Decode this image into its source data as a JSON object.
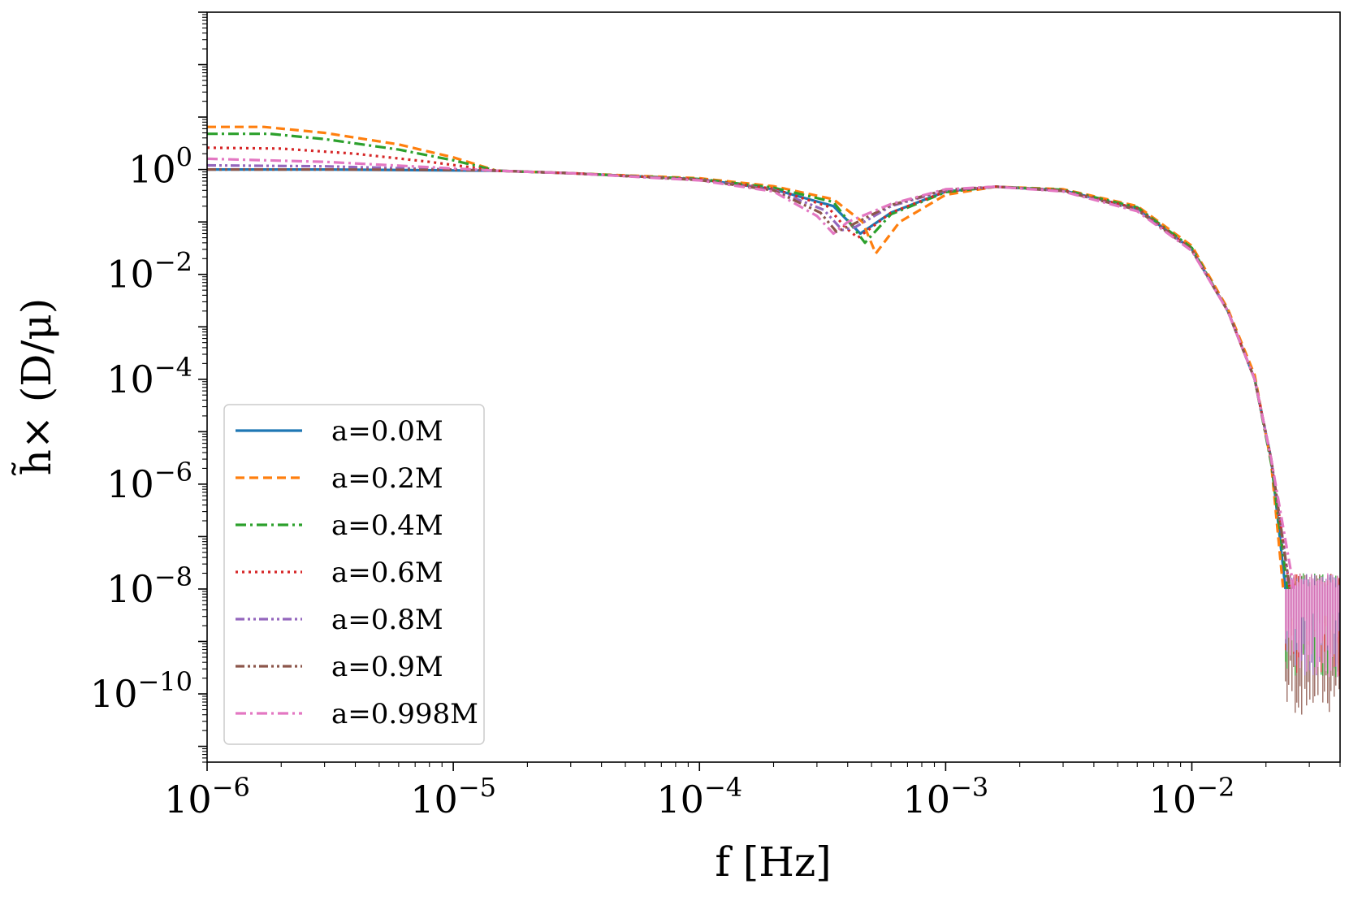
{
  "chart_data": {
    "type": "line",
    "title": "",
    "xlabel": "f [Hz]",
    "ylabel": "h̃× (D/μ)",
    "xscale": "log",
    "yscale": "log",
    "xlim": [
      1e-06,
      0.04
    ],
    "ylim": [
      5e-12,
      1000.0
    ],
    "grid": false,
    "legend_position": "lower-left",
    "x_ticks": [
      {
        "value": 1e-06,
        "base": "10",
        "exp": "−6"
      },
      {
        "value": 1e-05,
        "base": "10",
        "exp": "−5"
      },
      {
        "value": 0.0001,
        "base": "10",
        "exp": "−4"
      },
      {
        "value": 0.001,
        "base": "10",
        "exp": "−3"
      },
      {
        "value": 0.01,
        "base": "10",
        "exp": "−2"
      }
    ],
    "y_ticks": [
      {
        "value": 1,
        "base": "10",
        "exp": "0"
      },
      {
        "value": 0.01,
        "base": "10",
        "exp": "−2"
      },
      {
        "value": 0.0001,
        "base": "10",
        "exp": "−4"
      },
      {
        "value": 1e-06,
        "base": "10",
        "exp": "−6"
      },
      {
        "value": 1e-08,
        "base": "10",
        "exp": "−8"
      },
      {
        "value": 1e-10,
        "base": "10",
        "exp": "−10"
      }
    ],
    "noise_floor": {
      "f_start": 0.024,
      "f_end": 0.04,
      "upper": 2e-08,
      "lower": 5e-11
    },
    "series": [
      {
        "name": "a=0.0M",
        "color": "#1f77b4",
        "dash": "",
        "x": [
          1e-06,
          3e-06,
          1.5e-05,
          3e-05,
          0.0001,
          0.0002,
          0.00035,
          0.00045,
          0.0006,
          0.001,
          0.0016,
          0.003,
          0.006,
          0.01,
          0.014,
          0.018,
          0.021,
          0.024
        ],
        "y": [
          1.0,
          1.0,
          0.95,
          0.85,
          0.65,
          0.42,
          0.2,
          0.06,
          0.15,
          0.38,
          0.47,
          0.4,
          0.18,
          0.03,
          0.002,
          0.0001,
          3e-06,
          1e-08
        ]
      },
      {
        "name": "a=0.2M",
        "color": "#ff7f0e",
        "dash": "11,6",
        "x": [
          1e-06,
          1.7e-06,
          3e-06,
          6e-06,
          1e-05,
          1.5e-05,
          3e-05,
          0.0001,
          0.0002,
          0.00035,
          0.00046,
          0.00052,
          0.00065,
          0.001,
          0.0016,
          0.003,
          0.006,
          0.01,
          0.014,
          0.018,
          0.021,
          0.0235
        ],
        "y": [
          6.5,
          6.5,
          5.0,
          3.0,
          1.7,
          0.95,
          0.85,
          0.68,
          0.48,
          0.27,
          0.1,
          0.025,
          0.1,
          0.33,
          0.47,
          0.42,
          0.2,
          0.035,
          0.0022,
          0.00012,
          2.5e-06,
          1e-08
        ]
      },
      {
        "name": "a=0.4M",
        "color": "#2ca02c",
        "dash": "13,5,3,5",
        "x": [
          1e-06,
          1.8e-06,
          3e-06,
          6e-06,
          1e-05,
          1.5e-05,
          3e-05,
          0.0001,
          0.0002,
          0.00035,
          0.00042,
          0.00047,
          0.0006,
          0.001,
          0.0016,
          0.003,
          0.006,
          0.01,
          0.014,
          0.018,
          0.021,
          0.0245
        ],
        "y": [
          4.8,
          4.8,
          3.8,
          2.4,
          1.5,
          0.95,
          0.85,
          0.66,
          0.45,
          0.24,
          0.08,
          0.04,
          0.14,
          0.37,
          0.47,
          0.41,
          0.19,
          0.032,
          0.002,
          0.0001,
          2.5e-06,
          1e-08
        ]
      },
      {
        "name": "a=0.6M",
        "color": "#d62728",
        "dash": "3,5",
        "x": [
          1e-06,
          2e-06,
          4e-06,
          8e-06,
          1.5e-05,
          3e-05,
          0.0001,
          0.0002,
          0.00033,
          0.00039,
          0.00044,
          0.0006,
          0.001,
          0.0016,
          0.003,
          0.006,
          0.01,
          0.014,
          0.018,
          0.021,
          0.025
        ],
        "y": [
          2.6,
          2.5,
          2.0,
          1.4,
          0.95,
          0.85,
          0.65,
          0.43,
          0.2,
          0.08,
          0.05,
          0.15,
          0.38,
          0.47,
          0.4,
          0.18,
          0.03,
          0.002,
          0.0001,
          3e-06,
          1e-08
        ]
      },
      {
        "name": "a=0.8M",
        "color": "#9467bd",
        "dash": "11,4,3,4,3,4",
        "x": [
          1e-06,
          3e-06,
          1e-05,
          1.5e-05,
          3e-05,
          0.0001,
          0.0002,
          0.00032,
          0.00038,
          0.00043,
          0.0006,
          0.001,
          0.0016,
          0.003,
          0.006,
          0.01,
          0.014,
          0.018,
          0.021,
          0.025
        ],
        "y": [
          1.2,
          1.15,
          1.0,
          0.95,
          0.85,
          0.64,
          0.41,
          0.17,
          0.07,
          0.08,
          0.2,
          0.4,
          0.47,
          0.39,
          0.17,
          0.029,
          0.002,
          0.0001,
          3e-06,
          1e-08
        ]
      },
      {
        "name": "a=0.9M",
        "color": "#8c564b",
        "dash": "11,4,3,4,3,4",
        "x": [
          1e-06,
          3e-06,
          1e-05,
          1.5e-05,
          3e-05,
          0.0001,
          0.0002,
          0.00031,
          0.00036,
          0.00042,
          0.0006,
          0.001,
          0.0016,
          0.003,
          0.006,
          0.01,
          0.014,
          0.018,
          0.021,
          0.025
        ],
        "y": [
          1.0,
          1.0,
          0.98,
          0.95,
          0.85,
          0.63,
          0.4,
          0.15,
          0.065,
          0.09,
          0.21,
          0.41,
          0.47,
          0.39,
          0.17,
          0.029,
          0.002,
          0.0001,
          3e-06,
          1e-08
        ]
      },
      {
        "name": "a=0.998M",
        "color": "#e377c2",
        "dash": "13,5,3,5",
        "x": [
          1e-06,
          3e-06,
          1e-05,
          1.5e-05,
          3e-05,
          0.0001,
          0.0002,
          0.0003,
          0.00035,
          0.0004,
          0.0006,
          0.001,
          0.0016,
          0.003,
          0.006,
          0.01,
          0.014,
          0.018,
          0.021,
          0.026
        ],
        "y": [
          1.6,
          1.4,
          1.05,
          0.95,
          0.85,
          0.62,
          0.38,
          0.13,
          0.06,
          0.1,
          0.22,
          0.42,
          0.47,
          0.38,
          0.16,
          0.028,
          0.002,
          0.0001,
          3e-06,
          1e-08
        ]
      }
    ]
  }
}
